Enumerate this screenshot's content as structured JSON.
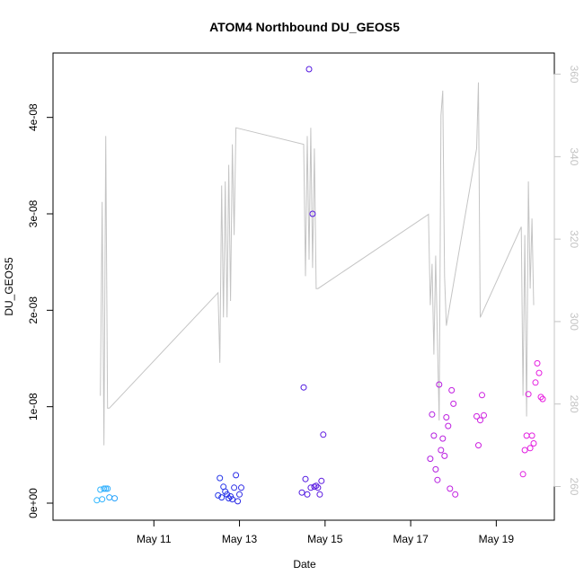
{
  "chart_data": {
    "type": "scatter",
    "title": "ATOM4 Northbound DU_GEOS5",
    "xlabel": "Date",
    "ylabel": "DU_GEOS5",
    "y2label": "",
    "x_axis": {
      "type": "date",
      "range": [
        "2016-05-09",
        "2016-05-20"
      ],
      "ticks": [
        "2016-05-11",
        "2016-05-13",
        "2016-05-15",
        "2016-05-17",
        "2016-05-19"
      ],
      "tick_labels": [
        "May 11",
        "May 13",
        "May 15",
        "May 17",
        "May 19"
      ]
    },
    "y_axis": {
      "ylim": [
        0,
        4.5e-08
      ],
      "ticks": [
        0,
        1e-08,
        2e-08,
        3e-08,
        4e-08
      ],
      "tick_labels": [
        "0e+00",
        "1e-08",
        "2e-08",
        "3e-08",
        "4e-08"
      ]
    },
    "y2_axis": {
      "ylim": [
        254,
        361
      ],
      "ticks": [
        260,
        280,
        300,
        320,
        340,
        360
      ],
      "tick_labels": [
        "260",
        "280",
        "300",
        "320",
        "340",
        "360"
      ],
      "color": "#c4c4c4"
    },
    "grid": false,
    "legend": "none",
    "series": [
      {
        "type": "line",
        "axis": "right",
        "color": "#c4c4c4",
        "x": [
          "2016-05-09T18:00",
          "2016-05-09T19:00",
          "2016-05-09T20:00",
          "2016-05-09T21:00",
          "2016-05-09T22:00",
          "2016-05-09T23:00",
          "2016-05-12T12:00",
          "2016-05-12T13:00",
          "2016-05-12T14:00",
          "2016-05-12T15:00",
          "2016-05-12T16:00",
          "2016-05-12T17:00",
          "2016-05-12T18:00",
          "2016-05-12T19:00",
          "2016-05-12T20:00",
          "2016-05-12T21:00",
          "2016-05-12T22:00",
          "2016-05-14T12:00",
          "2016-05-14T13:00",
          "2016-05-14T14:00",
          "2016-05-14T15:00",
          "2016-05-14T16:00",
          "2016-05-14T17:00",
          "2016-05-14T18:00",
          "2016-05-14T19:00",
          "2016-05-14T20:00",
          "2016-05-17T10:00",
          "2016-05-17T11:00",
          "2016-05-17T12:00",
          "2016-05-17T13:00",
          "2016-05-17T14:00",
          "2016-05-17T15:00",
          "2016-05-17T16:00",
          "2016-05-17T17:00",
          "2016-05-17T18:00",
          "2016-05-17T19:00",
          "2016-05-17T20:00",
          "2016-05-18T13:00",
          "2016-05-18T14:00",
          "2016-05-18T15:00",
          "2016-05-19T14:00",
          "2016-05-19T15:00",
          "2016-05-19T16:00",
          "2016-05-19T17:00",
          "2016-05-19T18:00",
          "2016-05-19T19:00",
          "2016-05-19T20:00",
          "2016-05-19T21:00"
        ],
        "y": [
          282,
          329,
          270,
          345,
          279,
          279,
          307,
          290,
          333,
          301,
          334,
          301,
          338,
          305,
          343,
          321,
          347,
          343,
          311,
          345,
          315,
          347,
          313,
          342,
          308,
          308,
          326,
          304,
          314,
          292,
          316,
          295,
          276,
          350,
          356,
          311,
          299,
          342,
          358,
          301,
          323,
          282,
          321,
          277,
          334,
          308,
          325,
          304
        ]
      },
      {
        "name": "",
        "type": "scatter",
        "axis": "left",
        "color_gradient": [
          "#2fb8ff",
          "#1d50ef",
          "#3812e0",
          "#7e1ee0",
          "#c21ee0",
          "#e81ee0"
        ],
        "x": [
          "2016-05-09T16:00",
          "2016-05-09T18:00",
          "2016-05-09T19:00",
          "2016-05-09T20:00",
          "2016-05-09T21:00",
          "2016-05-09T22:00",
          "2016-05-09T23:00",
          "2016-05-10T02:00",
          "2016-05-12T12:00",
          "2016-05-12T13:00",
          "2016-05-12T14:00",
          "2016-05-12T15:00",
          "2016-05-12T16:00",
          "2016-05-12T17:00",
          "2016-05-12T18:00",
          "2016-05-12T19:00",
          "2016-05-12T20:00",
          "2016-05-12T21:00",
          "2016-05-12T22:00",
          "2016-05-12T23:00",
          "2016-05-13T00:00",
          "2016-05-13T01:00",
          "2016-05-14T11:00",
          "2016-05-14T12:00",
          "2016-05-14T13:00",
          "2016-05-14T14:00",
          "2016-05-14T15:00",
          "2016-05-14T16:00",
          "2016-05-14T17:00",
          "2016-05-14T18:00",
          "2016-05-14T19:00",
          "2016-05-14T20:00",
          "2016-05-14T21:00",
          "2016-05-14T22:00",
          "2016-05-14T23:00",
          "2016-05-17T11:00",
          "2016-05-17T12:00",
          "2016-05-17T13:00",
          "2016-05-17T14:00",
          "2016-05-17T15:00",
          "2016-05-17T16:00",
          "2016-05-17T17:00",
          "2016-05-17T18:00",
          "2016-05-17T19:00",
          "2016-05-17T20:00",
          "2016-05-17T21:00",
          "2016-05-17T22:00",
          "2016-05-17T23:00",
          "2016-05-18T00:00",
          "2016-05-18T01:00",
          "2016-05-18T13:00",
          "2016-05-18T14:00",
          "2016-05-18T15:00",
          "2016-05-18T16:00",
          "2016-05-18T17:00",
          "2016-05-19T15:00",
          "2016-05-19T16:00",
          "2016-05-19T17:00",
          "2016-05-19T18:00",
          "2016-05-19T19:00",
          "2016-05-19T20:00",
          "2016-05-19T21:00",
          "2016-05-19T22:00",
          "2016-05-19T23:00",
          "2016-05-20T00:00",
          "2016-05-20T01:00",
          "2016-05-20T02:00"
        ],
        "y": [
          3e-10,
          1.4e-09,
          4e-10,
          1.5e-09,
          1.5e-09,
          1.5e-09,
          6e-10,
          5e-10,
          8e-10,
          2.6e-09,
          6e-10,
          1.7e-09,
          1.2e-09,
          9e-10,
          5e-10,
          7e-10,
          4e-10,
          1.6e-09,
          2.9e-09,
          2e-10,
          9e-10,
          1.6e-09,
          1.1e-09,
          1.2e-08,
          2.5e-09,
          9e-10,
          4.5e-08,
          1.6e-09,
          3e-08,
          1.7e-09,
          1.8e-09,
          1.6e-09,
          9e-10,
          2.3e-09,
          7.1e-09,
          4.6e-09,
          9.2e-09,
          7e-09,
          3.5e-09,
          2.4e-09,
          1.23e-08,
          5.5e-09,
          6.7e-09,
          4.9e-09,
          8.9e-09,
          8e-09,
          1.5e-09,
          1.17e-08,
          1.03e-08,
          9e-10,
          9e-09,
          6e-09,
          8.6e-09,
          1.12e-08,
          9.1e-09,
          3e-09,
          5.5e-09,
          7e-09,
          1.13e-08,
          5.7e-09,
          7e-09,
          6.2e-09,
          1.25e-08,
          1.45e-08,
          1.35e-08,
          1.1e-08,
          1.08e-08
        ]
      }
    ]
  }
}
